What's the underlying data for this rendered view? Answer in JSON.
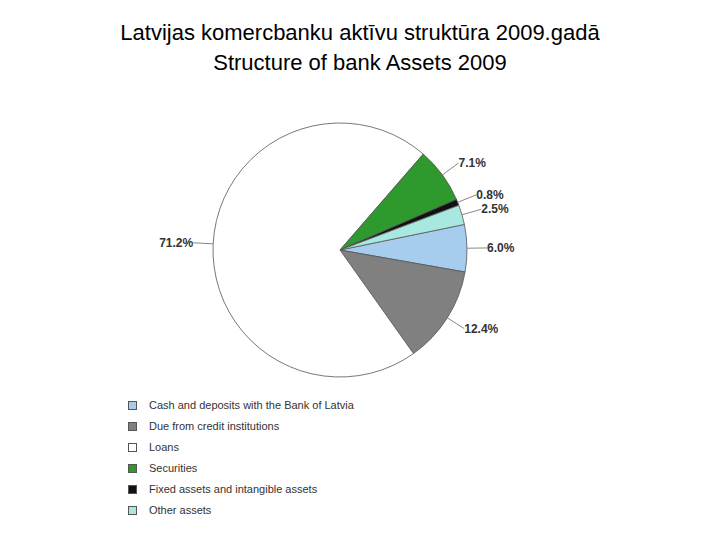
{
  "chart_data": {
    "type": "pie",
    "title": "Latvijas komercbanku aktīvu struktūra 2009.gadā",
    "subtitle": "Structure of bank Assets 2009",
    "categories": [
      "Cash and deposits with the Bank of Latvia",
      "Due from credit institutions",
      "Loans",
      "Securities",
      "Fixed assets and intangible assets",
      "Other assets"
    ],
    "values": [
      6.0,
      12.4,
      71.2,
      7.1,
      0.8,
      2.5
    ],
    "value_labels": [
      "6.0%",
      "12.4%",
      "71.2%",
      "7.1%",
      "0.8%",
      "2.5%"
    ],
    "colors": [
      "#a6cdee",
      "#808080",
      "#ffffff",
      "#2e9a2e",
      "#111111",
      "#a8e8e0"
    ],
    "data_labels": true,
    "legend": "bottom"
  }
}
